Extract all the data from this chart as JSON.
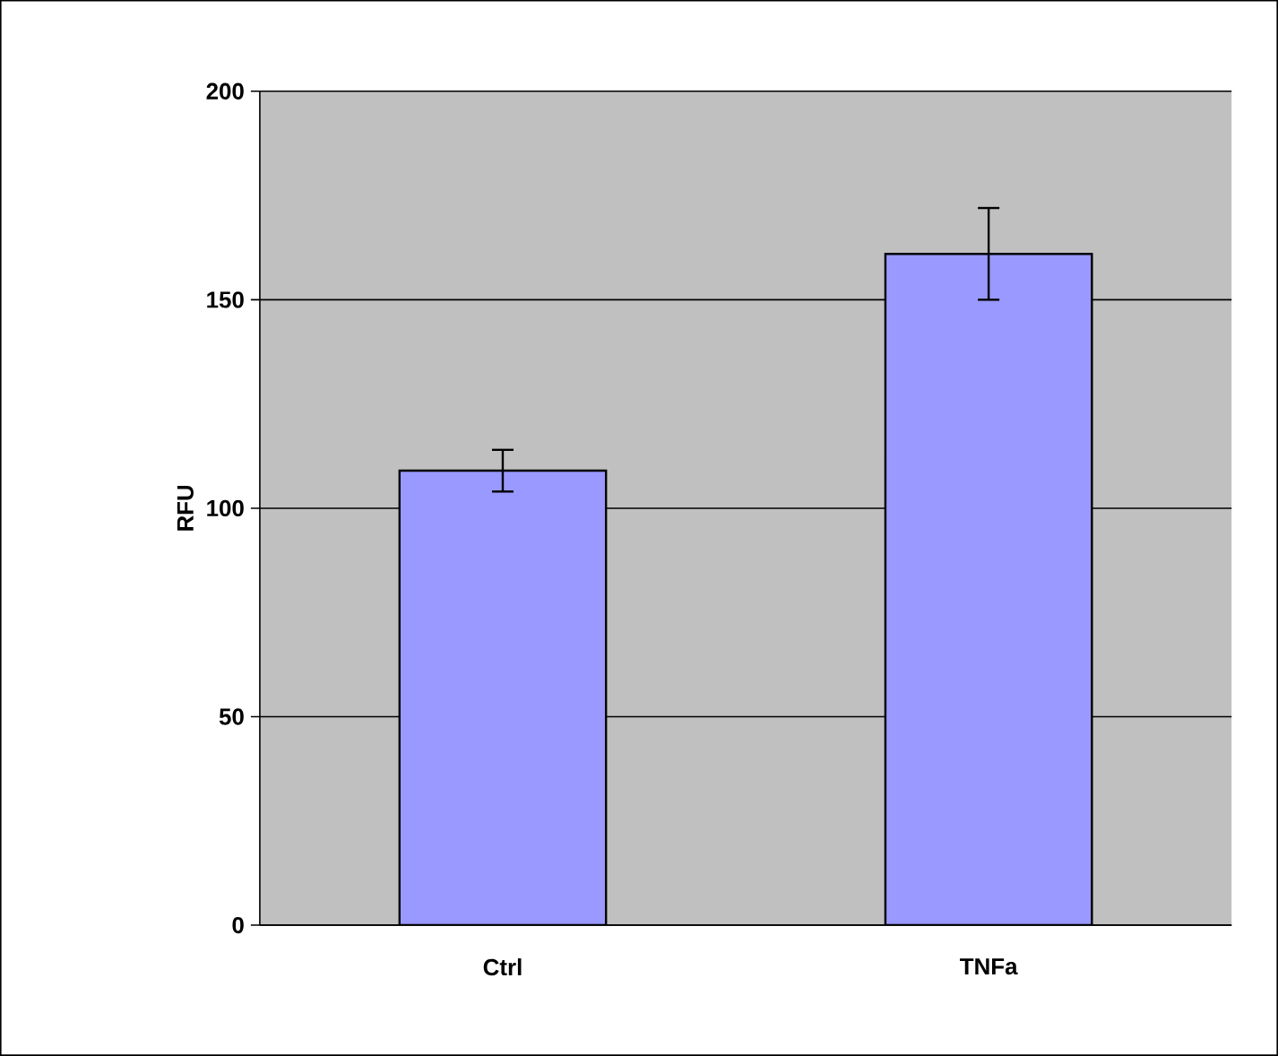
{
  "chart_data": {
    "type": "bar",
    "ylabel": "RFU",
    "categories": [
      "Ctrl",
      "TNFa"
    ],
    "values": [
      109,
      161
    ],
    "errors": [
      5,
      11
    ],
    "color": "#9999ff",
    "ylim": [
      0,
      200
    ],
    "yticks": [
      0,
      50,
      100,
      150,
      200
    ],
    "grid": "y"
  }
}
